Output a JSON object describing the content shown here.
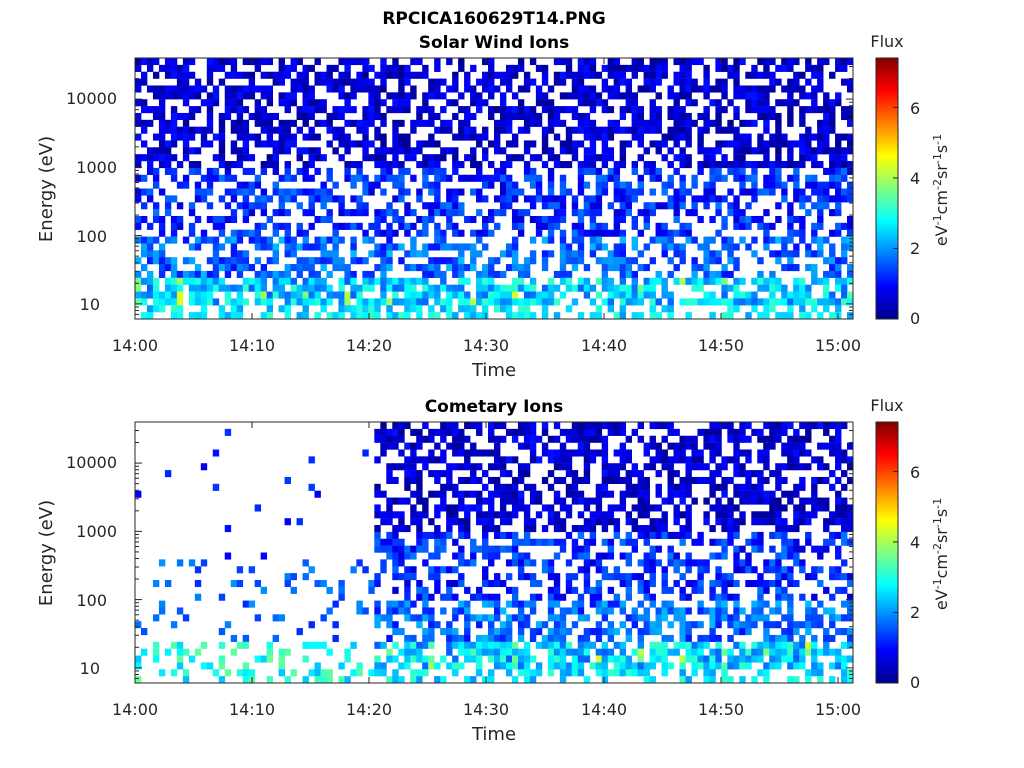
{
  "figure_title": "RPCICA160629T14.PNG",
  "chart_data": [
    {
      "type": "heatmap",
      "title": "Solar Wind Ions",
      "xlabel": "Time",
      "ylabel": "Energy (eV)",
      "x_ticks": [
        "14:00",
        "14:10",
        "14:20",
        "14:30",
        "14:40",
        "14:50",
        "15:00"
      ],
      "y_ticks": [
        "10",
        "100",
        "1000",
        "10000"
      ],
      "y_scale": "log",
      "xlim": [
        "14:00",
        "15:00"
      ],
      "ylim": [
        6,
        40000
      ],
      "colorbar": {
        "label": "Flux",
        "unit": "eV-1cm-2sr-1s-1",
        "ticks": [
          "0",
          "2",
          "4",
          "6"
        ],
        "range": [
          0,
          7.4
        ],
        "colormap": "jet"
      }
    },
    {
      "type": "heatmap",
      "title": "Cometary Ions",
      "xlabel": "Time",
      "ylabel": "Energy (eV)",
      "x_ticks": [
        "14:00",
        "14:10",
        "14:20",
        "14:30",
        "14:40",
        "14:50",
        "15:00"
      ],
      "y_ticks": [
        "10",
        "100",
        "1000",
        "10000"
      ],
      "y_scale": "log",
      "xlim": [
        "14:00",
        "15:00"
      ],
      "ylim": [
        6,
        40000
      ],
      "sparse_before": "14:20",
      "colorbar": {
        "label": "Flux",
        "unit": "eV-1cm-2sr-1s-1",
        "ticks": [
          "0",
          "2",
          "4",
          "6"
        ],
        "range": [
          0,
          7.4
        ],
        "colormap": "jet"
      }
    }
  ]
}
